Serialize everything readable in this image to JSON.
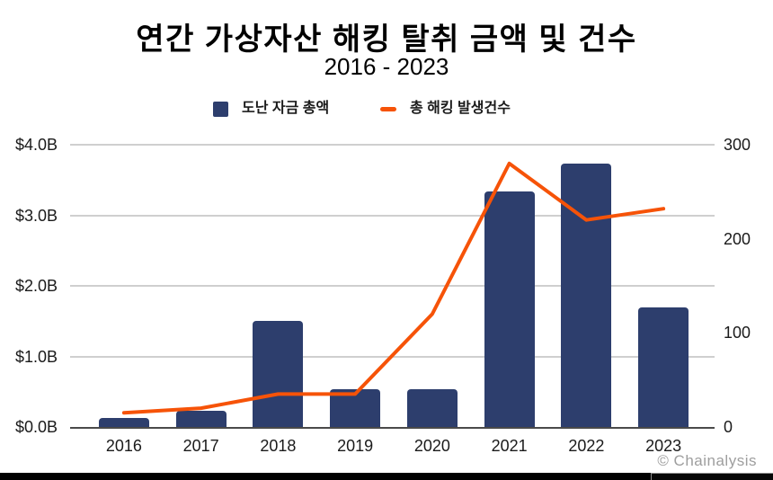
{
  "title": "연간 가상자산 해킹 탈취 금액 및 건수",
  "subtitle": "2016 - 2023",
  "legend": {
    "bar_label": "도난 자금 총액",
    "line_label": "총 해킹 발생건수"
  },
  "attribution": "© Chainalysis",
  "colors": {
    "bar": "#2d3e6d",
    "line": "#f65308",
    "grid": "#cfcfcf",
    "axis": "#4a4a4a",
    "text": "#1a1a1a",
    "attribution": "#9e9e9e"
  },
  "chart_data": {
    "type": "bar+line",
    "title": "연간 가상자산 해킹 탈취 금액 및 건수",
    "subtitle": "2016 - 2023",
    "categories": [
      "2016",
      "2017",
      "2018",
      "2019",
      "2020",
      "2021",
      "2022",
      "2023"
    ],
    "series": [
      {
        "name": "도난 자금 총액",
        "type": "bar",
        "axis": "left",
        "unit": "USD billions",
        "values": [
          0.13,
          0.23,
          1.5,
          0.53,
          0.53,
          3.34,
          3.73,
          1.7
        ]
      },
      {
        "name": "총 해킹 발생건수",
        "type": "line",
        "axis": "right",
        "unit": "count",
        "values": [
          15,
          20,
          35,
          35,
          120,
          280,
          220,
          232
        ]
      }
    ],
    "left_axis": {
      "range": [
        0,
        4
      ],
      "ticks": [
        "$0.0B",
        "$1.0B",
        "$2.0B",
        "$3.0B",
        "$4.0B"
      ]
    },
    "right_axis": {
      "range": [
        0,
        300
      ],
      "ticks": [
        "0",
        "100",
        "200",
        "300"
      ]
    },
    "grid": "horizontal",
    "legend_position": "top"
  }
}
